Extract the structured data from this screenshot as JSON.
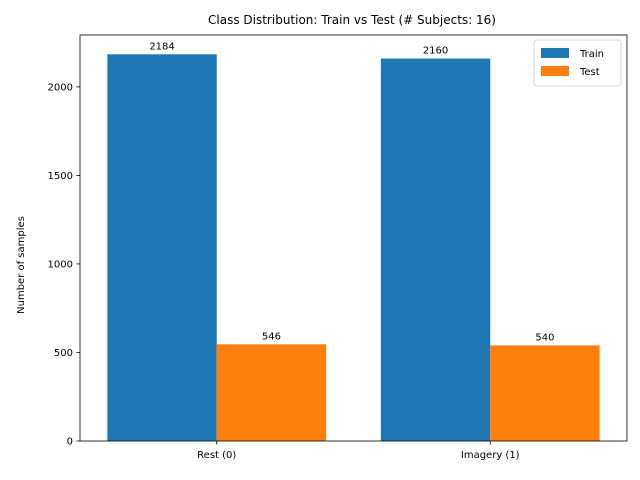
{
  "chart_data": {
    "type": "bar",
    "title": "Class Distribution: Train vs Test (# Subjects: 16)",
    "xlabel": "",
    "ylabel": "Number of samples",
    "categories": [
      "Rest (0)",
      "Imagery (1)"
    ],
    "series": [
      {
        "name": "Train",
        "values": [
          2184,
          2160
        ],
        "color": "#1f77b4"
      },
      {
        "name": "Test",
        "values": [
          546,
          540
        ],
        "color": "#ff7f0e"
      }
    ],
    "ylim": [
      0,
      2293
    ],
    "yticks": [
      0,
      500,
      1000,
      1500,
      2000
    ],
    "legend_position": "top-right",
    "grid": false
  }
}
